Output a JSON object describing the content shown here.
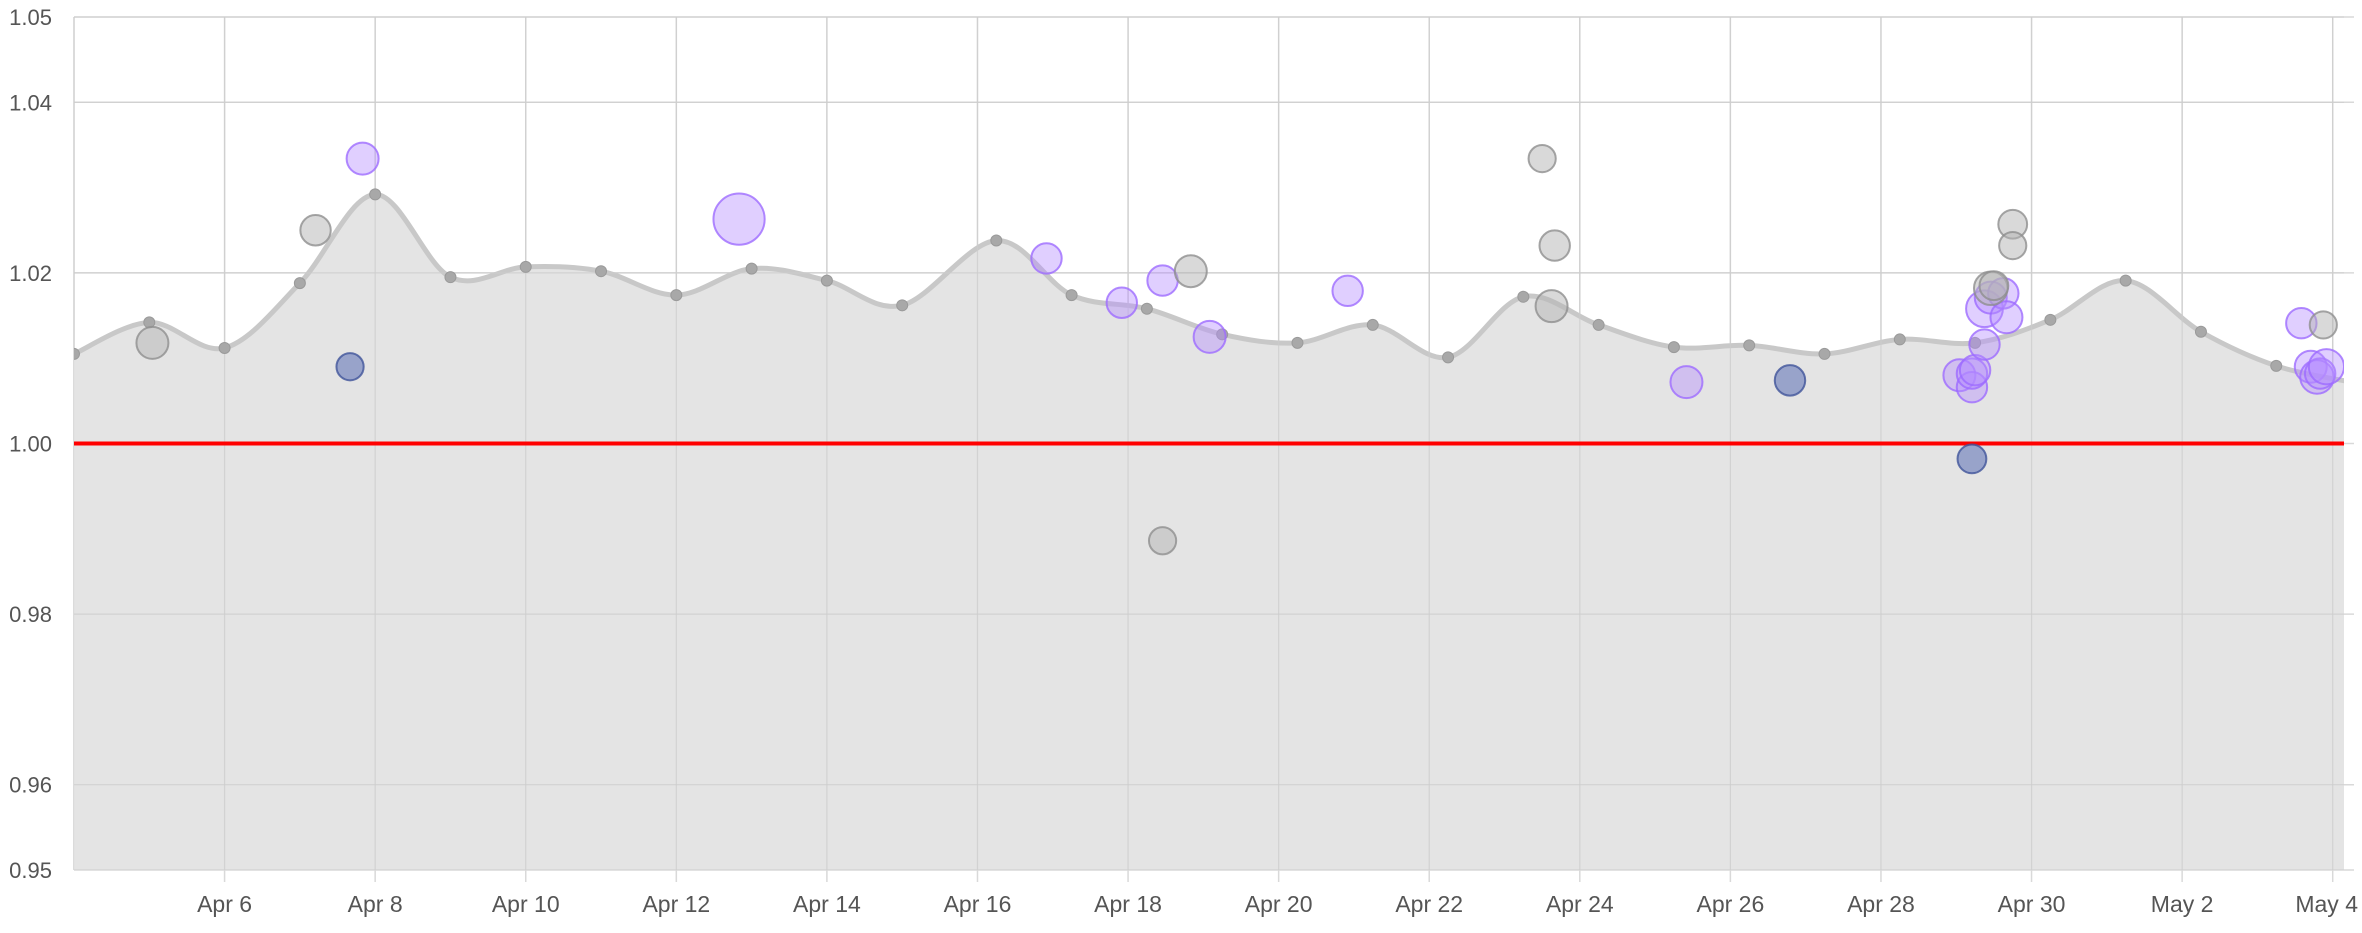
{
  "chart_data": {
    "type": "line",
    "title": "",
    "xlabel": "",
    "ylabel": "",
    "ylim": [
      0.95,
      1.05
    ],
    "xlim": [
      "2021-04-04",
      "2021-05-04"
    ],
    "y_ticks": [
      "0.95",
      "0.96",
      "0.98",
      "1.00",
      "1.02",
      "1.04",
      "1.05"
    ],
    "x_ticks": [
      {
        "date": "2021-04-06",
        "label": "Apr 6"
      },
      {
        "date": "2021-04-08",
        "label": "Apr 8"
      },
      {
        "date": "2021-04-10",
        "label": "Apr 10"
      },
      {
        "date": "2021-04-12",
        "label": "Apr 12"
      },
      {
        "date": "2021-04-14",
        "label": "Apr 14"
      },
      {
        "date": "2021-04-16",
        "label": "Apr 16"
      },
      {
        "date": "2021-04-18",
        "label": "Apr 18"
      },
      {
        "date": "2021-04-20",
        "label": "Apr 20"
      },
      {
        "date": "2021-04-22",
        "label": "Apr 22"
      },
      {
        "date": "2021-04-24",
        "label": "Apr 24"
      },
      {
        "date": "2021-04-26",
        "label": "Apr 26"
      },
      {
        "date": "2021-04-28",
        "label": "Apr 28"
      },
      {
        "date": "2021-04-30",
        "label": "Apr 30"
      },
      {
        "date": "2021-05-02",
        "label": "May 2"
      },
      {
        "date": "2021-05-04",
        "label": "May 4"
      }
    ],
    "grid": true,
    "reference_line": {
      "y": 1.0,
      "color": "#ff0000"
    },
    "colors": {
      "area_fill": "#e3e3e3",
      "line": "#c8c8c8",
      "point": "#a8a8a8",
      "bubble_gray": "#b4b4b4",
      "bubble_purple": "#b48cff",
      "bubble_blue": "#5a6eb4"
    },
    "line_series": {
      "points": [
        {
          "x": "2021-04-04T00:00",
          "y": 1.0105
        },
        {
          "x": "2021-04-05T00:00",
          "y": 1.0142
        },
        {
          "x": "2021-04-06T00:00",
          "y": 1.0112
        },
        {
          "x": "2021-04-07T00:00",
          "y": 1.0188
        },
        {
          "x": "2021-04-08T00:00",
          "y": 1.0292
        },
        {
          "x": "2021-04-09T00:00",
          "y": 1.0195
        },
        {
          "x": "2021-04-10T00:00",
          "y": 1.0207
        },
        {
          "x": "2021-04-11T00:00",
          "y": 1.0202
        },
        {
          "x": "2021-04-12T00:00",
          "y": 1.0174
        },
        {
          "x": "2021-04-13T00:00",
          "y": 1.0205
        },
        {
          "x": "2021-04-14T00:00",
          "y": 1.0191
        },
        {
          "x": "2021-04-15T00:00",
          "y": 1.0162
        },
        {
          "x": "2021-04-16T06:00",
          "y": 1.0238
        },
        {
          "x": "2021-04-17T06:00",
          "y": 1.0174
        },
        {
          "x": "2021-04-18T06:00",
          "y": 1.0158
        },
        {
          "x": "2021-04-19T06:00",
          "y": 1.0128
        },
        {
          "x": "2021-04-20T06:00",
          "y": 1.0118
        },
        {
          "x": "2021-04-21T06:00",
          "y": 1.0139
        },
        {
          "x": "2021-04-22T06:00",
          "y": 1.0101
        },
        {
          "x": "2021-04-23T06:00",
          "y": 1.0172
        },
        {
          "x": "2021-04-24T06:00",
          "y": 1.0139
        },
        {
          "x": "2021-04-25T06:00",
          "y": 1.0113
        },
        {
          "x": "2021-04-26T06:00",
          "y": 1.0115
        },
        {
          "x": "2021-04-27T06:00",
          "y": 1.0105
        },
        {
          "x": "2021-04-28T06:00",
          "y": 1.0122
        },
        {
          "x": "2021-04-29T06:00",
          "y": 1.0118
        },
        {
          "x": "2021-04-30T06:00",
          "y": 1.0145
        },
        {
          "x": "2021-05-01T06:00",
          "y": 1.0191
        },
        {
          "x": "2021-05-02T06:00",
          "y": 1.0131
        },
        {
          "x": "2021-05-03T06:00",
          "y": 1.0091
        },
        {
          "x": "2021-05-04T06:00",
          "y": 1.0072
        }
      ]
    },
    "bubble_series": [
      {
        "color": "purple",
        "points": [
          {
            "x": "2021-04-07T20:00",
            "y": 1.0334,
            "size": 1.0
          },
          {
            "x": "2021-04-12T20:00",
            "y": 1.0263,
            "size": 1.6
          },
          {
            "x": "2021-04-16T22:00",
            "y": 1.0217,
            "size": 0.95
          },
          {
            "x": "2021-04-17T22:00",
            "y": 1.0165,
            "size": 0.95
          },
          {
            "x": "2021-04-18T11:00",
            "y": 1.0191,
            "size": 0.95
          },
          {
            "x": "2021-04-19T02:00",
            "y": 1.0125,
            "size": 1.0
          },
          {
            "x": "2021-04-20T22:00",
            "y": 1.0179,
            "size": 0.95
          },
          {
            "x": "2021-04-25T10:00",
            "y": 1.0072,
            "size": 1.0
          },
          {
            "x": "2021-04-29T01:00",
            "y": 1.008,
            "size": 1.0
          },
          {
            "x": "2021-04-29T05:00",
            "y": 1.0066,
            "size": 0.95
          },
          {
            "x": "2021-04-29T05:00",
            "y": 1.0082,
            "size": 0.95
          },
          {
            "x": "2021-04-29T06:00",
            "y": 1.0086,
            "size": 0.95
          },
          {
            "x": "2021-04-29T09:00",
            "y": 1.0158,
            "size": 1.15
          },
          {
            "x": "2021-04-29T09:00",
            "y": 1.0116,
            "size": 0.95
          },
          {
            "x": "2021-04-29T11:00",
            "y": 1.0171,
            "size": 1.0
          },
          {
            "x": "2021-04-29T15:00",
            "y": 1.0176,
            "size": 0.95
          },
          {
            "x": "2021-04-29T16:00",
            "y": 1.0148,
            "size": 1.0
          },
          {
            "x": "2021-05-03T14:00",
            "y": 1.0141,
            "size": 0.95
          },
          {
            "x": "2021-05-03T17:00",
            "y": 1.009,
            "size": 1.0
          },
          {
            "x": "2021-05-03T19:00",
            "y": 1.0078,
            "size": 1.05
          },
          {
            "x": "2021-05-03T20:00",
            "y": 1.0082,
            "size": 0.95
          },
          {
            "x": "2021-05-03T22:00",
            "y": 1.009,
            "size": 1.1
          }
        ]
      },
      {
        "color": "gray",
        "points": [
          {
            "x": "2021-04-05T01:00",
            "y": 1.0118,
            "size": 1.0
          },
          {
            "x": "2021-04-07T05:00",
            "y": 1.025,
            "size": 0.95
          },
          {
            "x": "2021-04-18T11:00",
            "y": 0.9886,
            "size": 0.85
          },
          {
            "x": "2021-04-18T20:00",
            "y": 1.0202,
            "size": 1.0
          },
          {
            "x": "2021-04-23T12:00",
            "y": 1.0334,
            "size": 0.85
          },
          {
            "x": "2021-04-23T16:00",
            "y": 1.0232,
            "size": 0.95
          },
          {
            "x": "2021-04-23T15:00",
            "y": 1.0161,
            "size": 1.0
          },
          {
            "x": "2021-04-29T11:00",
            "y": 1.0182,
            "size": 1.05
          },
          {
            "x": "2021-04-29T12:00",
            "y": 1.0185,
            "size": 0.9
          },
          {
            "x": "2021-04-29T18:00",
            "y": 1.0257,
            "size": 0.9
          },
          {
            "x": "2021-04-29T18:00",
            "y": 1.0232,
            "size": 0.85
          },
          {
            "x": "2021-05-03T21:00",
            "y": 1.0139,
            "size": 0.85
          }
        ]
      },
      {
        "color": "blue",
        "points": [
          {
            "x": "2021-04-07T16:00",
            "y": 1.009,
            "size": 0.85
          },
          {
            "x": "2021-04-26T19:00",
            "y": 1.0074,
            "size": 0.95
          },
          {
            "x": "2021-04-29T05:00",
            "y": 0.9982,
            "size": 0.9
          }
        ]
      }
    ]
  }
}
